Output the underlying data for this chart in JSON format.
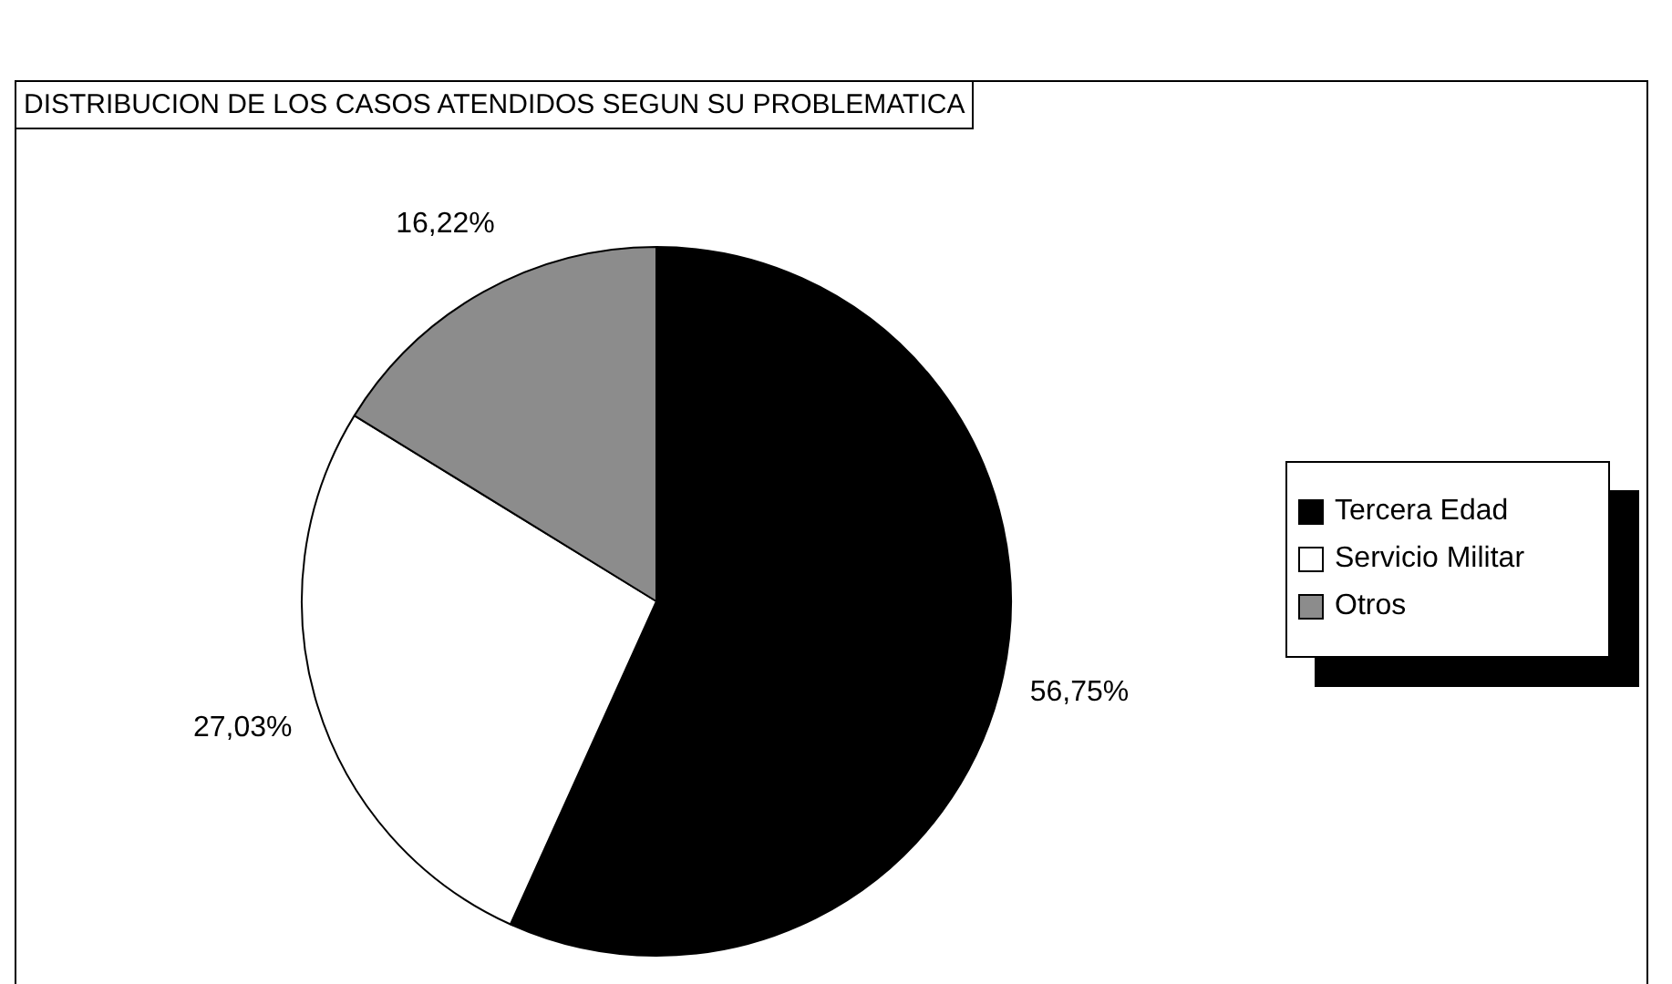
{
  "chart_data": {
    "type": "pie",
    "title": "DISTRIBUCION DE LOS CASOS ATENDIDOS SEGUN SU PROBLEMATICA",
    "categories": [
      "Tercera Edad",
      "Servicio Militar",
      "Otros"
    ],
    "values": [
      56.75,
      27.03,
      16.22
    ],
    "colors": [
      "#000000",
      "#ffffff",
      "#8c8c8c"
    ],
    "value_labels": [
      "56,75%",
      "27,03%",
      "16,22%"
    ],
    "legend": "right"
  }
}
